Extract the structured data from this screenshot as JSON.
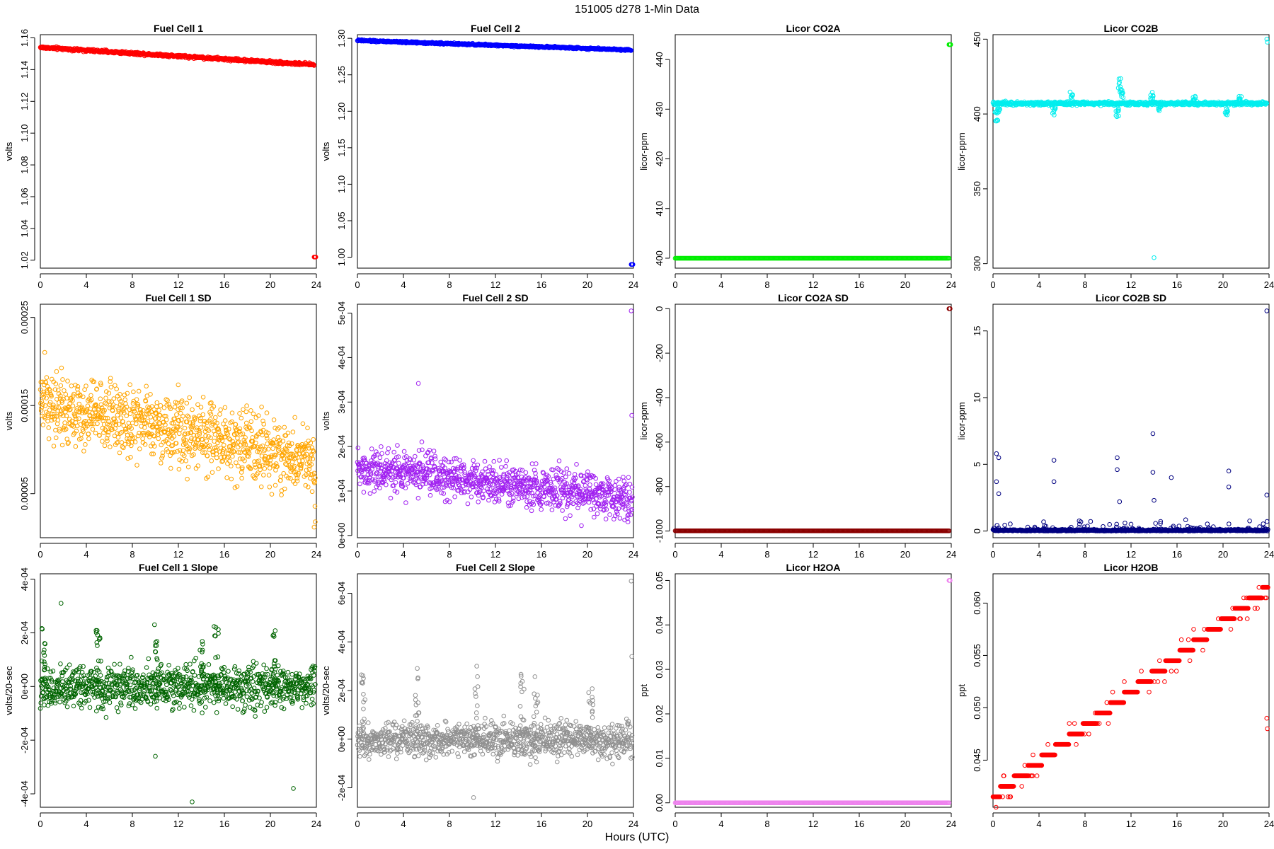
{
  "figure": {
    "title": "151005    d278    1-Min Data",
    "xlabel": "Hours (UTC)"
  },
  "chart_data": [
    {
      "type": "scatter",
      "title": "Fuel Cell 1",
      "ylabel": "volts",
      "color": "#ff0000",
      "xlim": [
        0,
        24
      ],
      "ylim": [
        1.015,
        1.162
      ],
      "xticks": [
        0,
        4,
        8,
        12,
        16,
        20,
        24
      ],
      "yticks": [
        1.02,
        1.04,
        1.06,
        1.08,
        1.1,
        1.12,
        1.14,
        1.16
      ],
      "ytick_labels": [
        "1.02",
        "1.04",
        "1.06",
        "1.08",
        "1.10",
        "1.12",
        "1.14",
        "1.16"
      ],
      "gen": {
        "kind": "linear",
        "y0": 1.154,
        "y1": 1.143,
        "noise": 0.0006
      },
      "extra": [
        [
          23.8,
          1.022
        ],
        [
          23.85,
          1.022
        ],
        [
          23.9,
          1.022
        ],
        [
          23.95,
          1.022
        ]
      ]
    },
    {
      "type": "scatter",
      "title": "Fuel Cell 2",
      "ylabel": "volts",
      "color": "#0000ff",
      "xlim": [
        0,
        24
      ],
      "ylim": [
        0.985,
        1.305
      ],
      "xticks": [
        0,
        4,
        8,
        12,
        16,
        20,
        24
      ],
      "yticks": [
        1.0,
        1.05,
        1.1,
        1.15,
        1.2,
        1.25,
        1.3
      ],
      "ytick_labels": [
        "1.00",
        "1.05",
        "1.10",
        "1.15",
        "1.20",
        "1.25",
        "1.30"
      ],
      "gen": {
        "kind": "linear",
        "y0": 1.297,
        "y1": 1.284,
        "noise": 0.0008
      },
      "extra": [
        [
          23.8,
          0.99
        ],
        [
          23.85,
          0.99
        ],
        [
          23.9,
          0.99
        ],
        [
          23.95,
          0.99
        ]
      ]
    },
    {
      "type": "scatter",
      "title": "Licor CO2A",
      "ylabel": "licor-ppm",
      "color": "#00ee00",
      "xlim": [
        0,
        24
      ],
      "ylim": [
        398,
        445
      ],
      "xticks": [
        0,
        4,
        8,
        12,
        16,
        20,
        24
      ],
      "yticks": [
        400,
        410,
        420,
        430,
        440
      ],
      "ytick_labels": [
        "400",
        "410",
        "420",
        "430",
        "440"
      ],
      "gen": {
        "kind": "const",
        "y": 400,
        "noise": 0
      },
      "extra": [
        [
          23.8,
          443
        ],
        [
          23.85,
          443
        ],
        [
          23.9,
          443
        ],
        [
          23.95,
          443
        ]
      ]
    },
    {
      "type": "scatter",
      "title": "Licor CO2B",
      "ylabel": "licor-ppm",
      "color": "#00eeee",
      "xlim": [
        0,
        24
      ],
      "ylim": [
        297,
        453
      ],
      "xticks": [
        0,
        4,
        8,
        12,
        16,
        20,
        24
      ],
      "yticks": [
        300,
        350,
        400,
        450
      ],
      "ytick_labels": [
        "300",
        "350",
        "400",
        "450"
      ],
      "gen": {
        "kind": "spiky",
        "base": 407,
        "noise": 0.8,
        "spikes": [
          [
            0.3,
            -12
          ],
          [
            0.5,
            -6
          ],
          [
            5.3,
            -8
          ],
          [
            6.8,
            8
          ],
          [
            10.8,
            -10
          ],
          [
            11.0,
            18
          ],
          [
            11.2,
            10
          ],
          [
            13.8,
            8
          ],
          [
            14.5,
            -5
          ],
          [
            17.5,
            5
          ],
          [
            20.3,
            -8
          ],
          [
            21.5,
            5
          ]
        ]
      },
      "extra": [
        [
          14.0,
          304
        ],
        [
          23.8,
          450
        ],
        [
          23.85,
          448
        ]
      ]
    },
    {
      "type": "scatter",
      "title": "Fuel Cell 1 SD",
      "ylabel": "volts",
      "color": "#ffa500",
      "xlim": [
        0,
        24
      ],
      "ylim": [
        0.0,
        0.000265
      ],
      "xticks": [
        0,
        4,
        8,
        12,
        16,
        20,
        24
      ],
      "yticks": [
        5e-05,
        0.00015,
        0.00025
      ],
      "ytick_labels": [
        "0.00005",
        "0.00015",
        "0.00025"
      ],
      "gen": {
        "kind": "noisy",
        "y0": 0.000155,
        "y1": 8.5e-05,
        "noise": 2.8e-05,
        "min": 1e-05
      },
      "extra": [
        [
          23.8,
          1.2e-05
        ],
        [
          23.9,
          1.8e-05
        ]
      ]
    },
    {
      "type": "scatter",
      "title": "Fuel Cell 2 SD",
      "ylabel": "volts",
      "color": "#a020f0",
      "xlim": [
        0,
        24
      ],
      "ylim": [
        -5e-06,
        0.00052
      ],
      "xticks": [
        0,
        4,
        8,
        12,
        16,
        20,
        24
      ],
      "yticks": [
        0,
        0.0001,
        0.0002,
        0.0003,
        0.0004,
        0.0005
      ],
      "ytick_labels": [
        "0e+00",
        "1e-04",
        "2e-04",
        "3e-04",
        "4e-04",
        "5e-04"
      ],
      "gen": {
        "kind": "noisy",
        "y0": 0.000155,
        "y1": 8e-05,
        "noise": 3.5e-05,
        "min": 1e-05
      },
      "extra": [
        [
          23.8,
          0.000505
        ],
        [
          23.85,
          0.00027
        ],
        [
          5.3,
          0.000342
        ]
      ]
    },
    {
      "type": "scatter",
      "title": "Licor CO2A SD",
      "ylabel": "licor-ppm",
      "color": "#8b0000",
      "xlim": [
        0,
        24
      ],
      "ylim": [
        -1030,
        20
      ],
      "xticks": [
        0,
        4,
        8,
        12,
        16,
        20,
        24
      ],
      "yticks": [
        -1000,
        -800,
        -600,
        -400,
        -200,
        0
      ],
      "ytick_labels": [
        "-1000",
        "-800",
        "-600",
        "-400",
        "-200",
        "0"
      ],
      "gen": {
        "kind": "const",
        "y": -999,
        "noise": 0
      },
      "extra": [
        [
          23.8,
          0
        ],
        [
          23.85,
          0
        ],
        [
          23.9,
          0
        ]
      ]
    },
    {
      "type": "scatter",
      "title": "Licor CO2B SD",
      "ylabel": "licor-ppm",
      "color": "#000080",
      "xlim": [
        0,
        24
      ],
      "ylim": [
        -0.5,
        17
      ],
      "xticks": [
        0,
        4,
        8,
        12,
        16,
        20,
        24
      ],
      "yticks": [
        0,
        5,
        10,
        15
      ],
      "ytick_labels": [
        "0",
        "5",
        "10",
        "15"
      ],
      "gen": {
        "kind": "baseline_spikes",
        "base": 0.05,
        "noise": 0.05,
        "spikes": [
          [
            0.3,
            5.8
          ],
          [
            0.5,
            5.5
          ],
          [
            0.3,
            3.7
          ],
          [
            0.5,
            2.8
          ],
          [
            5.3,
            5.3
          ],
          [
            5.3,
            3.7
          ],
          [
            10.8,
            5.5
          ],
          [
            10.8,
            4.6
          ],
          [
            11.0,
            2.2
          ],
          [
            13.9,
            7.3
          ],
          [
            13.9,
            4.4
          ],
          [
            14.0,
            2.3
          ],
          [
            15.5,
            4.0
          ],
          [
            20.5,
            4.5
          ],
          [
            20.5,
            3.3
          ],
          [
            23.8,
            16.5
          ],
          [
            23.8,
            2.7
          ]
        ]
      },
      "extra": []
    },
    {
      "type": "scatter",
      "title": "Fuel Cell 1 Slope",
      "ylabel": "volts/20-sec",
      "color": "#006400",
      "xlim": [
        0,
        24
      ],
      "ylim": [
        -0.00045,
        0.00042
      ],
      "xticks": [
        0,
        4,
        8,
        12,
        16,
        20,
        24
      ],
      "yticks": [
        -0.0004,
        -0.0002,
        0,
        0.0002,
        0.0004
      ],
      "ytick_labels": [
        "-4e-04",
        "-2e-04",
        "0e+00",
        "2e-04",
        "4e-04"
      ],
      "gen": {
        "kind": "slope",
        "noise": 5.5e-05,
        "bursts": [
          [
            0.3,
            0.00022
          ],
          [
            5.0,
            0.00022
          ],
          [
            10.1,
            0.00025
          ],
          [
            14.0,
            0.00017
          ],
          [
            15.3,
            0.00024
          ],
          [
            20.3,
            0.00025
          ]
        ]
      },
      "extra": [
        [
          13.2,
          -0.00043
        ],
        [
          22.0,
          -0.00038
        ],
        [
          10.0,
          -0.00026
        ],
        [
          1.8,
          0.00031
        ]
      ]
    },
    {
      "type": "scatter",
      "title": "Fuel Cell 2 Slope",
      "ylabel": "volts/20-sec",
      "color": "#909090",
      "xlim": [
        0,
        24
      ],
      "ylim": [
        -0.00028,
        0.00068
      ],
      "xticks": [
        0,
        4,
        8,
        12,
        16,
        20,
        24
      ],
      "yticks": [
        -0.0002,
        0,
        0.0002,
        0.0004,
        0.0006
      ],
      "ytick_labels": [
        "-2e-04",
        "0e+00",
        "2e-04",
        "4e-04",
        "6e-04"
      ],
      "gen": {
        "kind": "slope",
        "noise": 5e-05,
        "bursts": [
          [
            0.5,
            0.00028
          ],
          [
            5.2,
            0.00032
          ],
          [
            10.3,
            0.00033
          ],
          [
            14.3,
            0.00027
          ],
          [
            15.5,
            0.00026
          ],
          [
            20.3,
            0.00022
          ]
        ]
      },
      "extra": [
        [
          23.8,
          0.00065
        ],
        [
          23.85,
          0.00034
        ],
        [
          10.1,
          -0.00024
        ]
      ]
    },
    {
      "type": "scatter",
      "title": "Licor H2OA",
      "ylabel": "ppt",
      "color": "#ee82ee",
      "xlim": [
        0,
        24
      ],
      "ylim": [
        -0.001,
        0.0515
      ],
      "xticks": [
        0,
        4,
        8,
        12,
        16,
        20,
        24
      ],
      "yticks": [
        0,
        0.01,
        0.02,
        0.03,
        0.04,
        0.05
      ],
      "ytick_labels": [
        "0.00",
        "0.01",
        "0.02",
        "0.03",
        "0.04",
        "0.05"
      ],
      "gen": {
        "kind": "const",
        "y": 0.0,
        "noise": 0
      },
      "extra": [
        [
          23.8,
          0.05
        ],
        [
          23.85,
          0.05
        ],
        [
          23.9,
          0.05
        ]
      ]
    },
    {
      "type": "scatter",
      "title": "Licor H2OB",
      "ylabel": "ppt",
      "color": "#ff0000",
      "xlim": [
        0,
        24
      ],
      "ylim": [
        0.0405,
        0.0628
      ],
      "xticks": [
        0,
        4,
        8,
        12,
        16,
        20,
        24
      ],
      "yticks": [
        0.045,
        0.05,
        0.055,
        0.06
      ],
      "ytick_labels": [
        "0.045",
        "0.050",
        "0.055",
        "0.060"
      ],
      "gen": {
        "kind": "steps",
        "y0": 0.0415,
        "y1": 0.062,
        "step": 0.001
      },
      "extra": [
        [
          23.8,
          0.049
        ],
        [
          23.85,
          0.048
        ]
      ]
    }
  ]
}
